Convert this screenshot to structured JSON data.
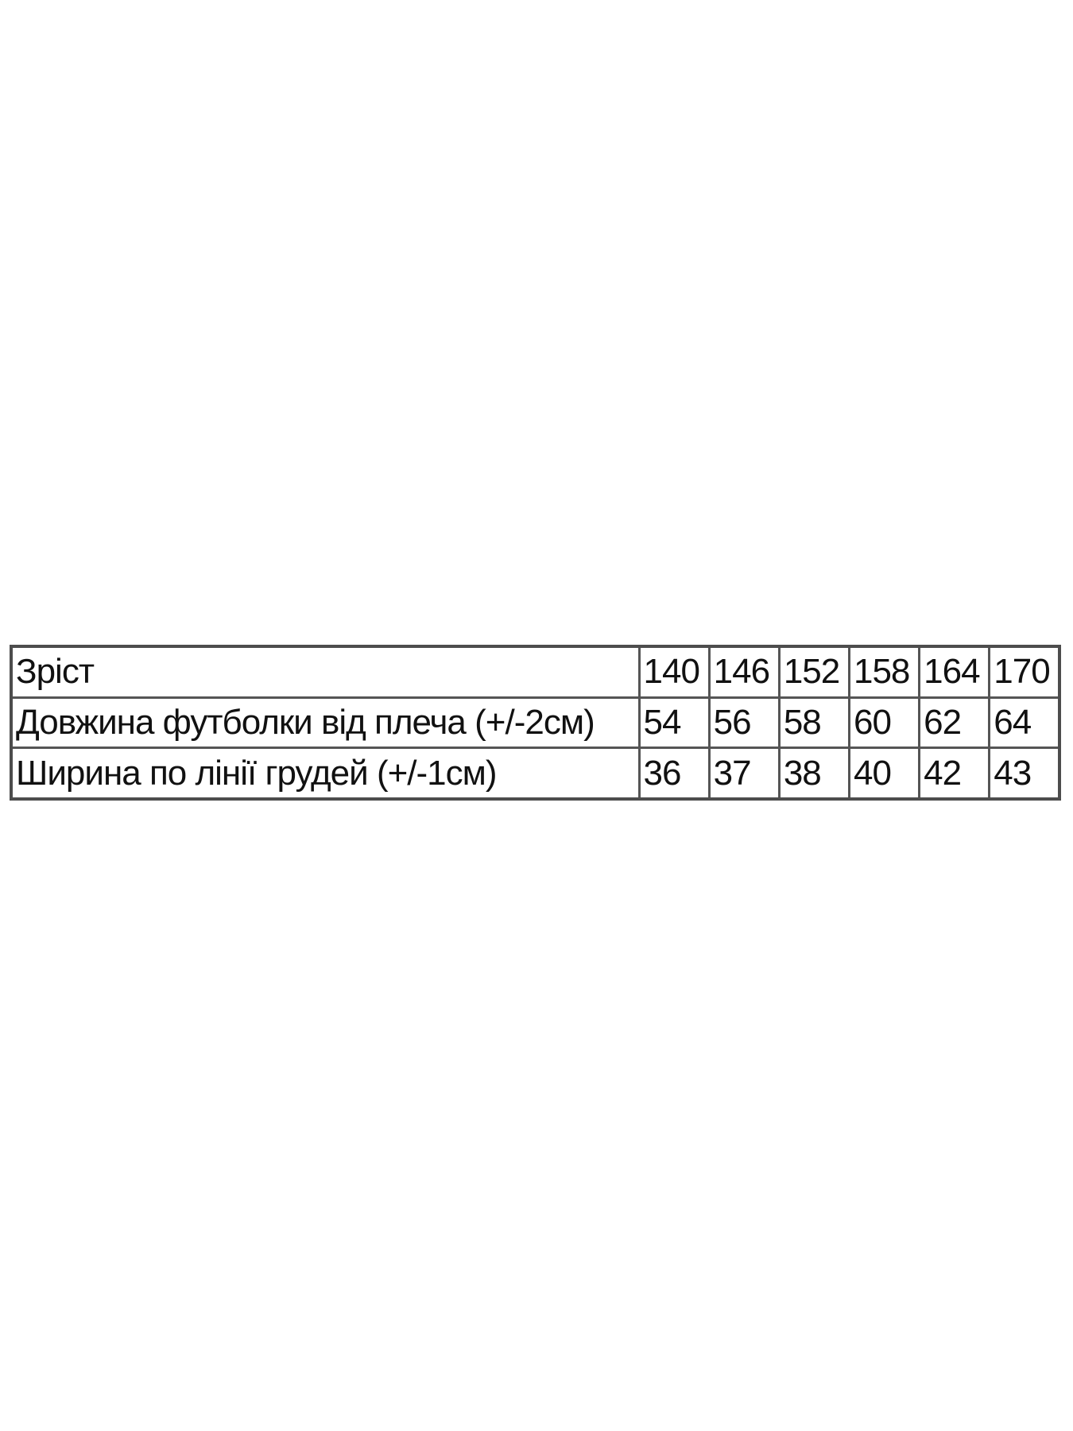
{
  "table": {
    "header": {
      "label": "Зріст",
      "sizes": [
        "140",
        "146",
        "152",
        "158",
        "164",
        "170"
      ]
    },
    "rows": [
      {
        "label": "Довжина футболки від плеча (+/-2см)",
        "values": [
          "54",
          "56",
          "58",
          "60",
          "62",
          "64"
        ]
      },
      {
        "label": "Ширина по лінії грудей (+/-1см)",
        "values": [
          "36",
          "37",
          "38",
          "40",
          "42",
          "43"
        ]
      }
    ]
  }
}
